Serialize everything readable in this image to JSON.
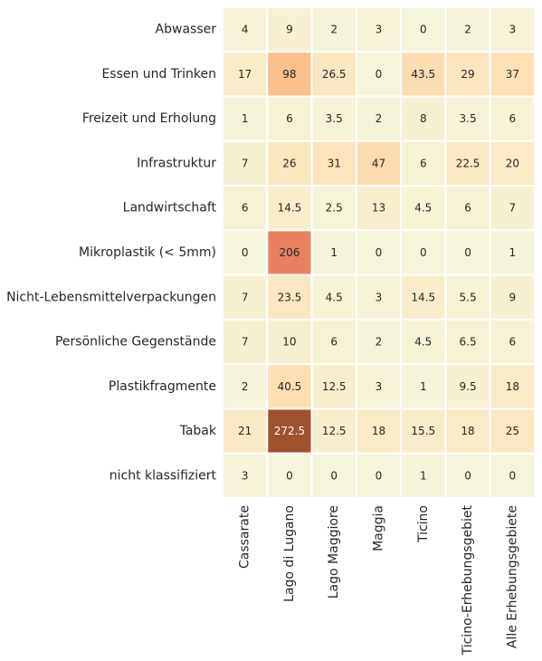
{
  "chart_data": {
    "type": "heatmap",
    "title": "",
    "xlabel": "",
    "ylabel": "",
    "rows": [
      "Abwasser",
      "Essen und Trinken",
      "Freizeit und Erholung",
      "Infrastruktur",
      "Landwirtschaft",
      "Mikroplastik (< 5mm)",
      "Nicht-Lebensmittelverpackungen",
      "Persönliche Gegenstände",
      "Plastikfragmente",
      "Tabak",
      "nicht klassifiziert"
    ],
    "columns": [
      "Cassarate",
      "Lago di Lugano",
      "Lago Maggiore",
      "Maggia",
      "Ticino",
      "Ticino-Erhebungsgebiet",
      "Alle Erhebungsgebiete"
    ],
    "values": [
      [
        4,
        9,
        2,
        3,
        0,
        2,
        3
      ],
      [
        17,
        98,
        26.5,
        0,
        43.5,
        29,
        37
      ],
      [
        1,
        6,
        3.5,
        2,
        8,
        3.5,
        6
      ],
      [
        7,
        26,
        31,
        47,
        6,
        22.5,
        20
      ],
      [
        6,
        14.5,
        2.5,
        13,
        4.5,
        6,
        7
      ],
      [
        0,
        206,
        1,
        0,
        0,
        0,
        1
      ],
      [
        7,
        23.5,
        4.5,
        3,
        14.5,
        5.5,
        9
      ],
      [
        7,
        10,
        6,
        2,
        4.5,
        6.5,
        6
      ],
      [
        2,
        40.5,
        12.5,
        3,
        1,
        9.5,
        18
      ],
      [
        21,
        272.5,
        12.5,
        18,
        15.5,
        18,
        25
      ],
      [
        3,
        0,
        0,
        0,
        1,
        0,
        0
      ]
    ],
    "colors": {
      "background": "#ffffff",
      "cell_border": "#ffffff",
      "text_dark": "#262626",
      "text_light": "#ffffff",
      "scale": [
        "#f5f5dc",
        "#fde3b8",
        "#fbc68f",
        "#fa8c6c",
        "#a0522d"
      ]
    },
    "scale_max": 272.5,
    "grid": false,
    "legend": "none"
  }
}
